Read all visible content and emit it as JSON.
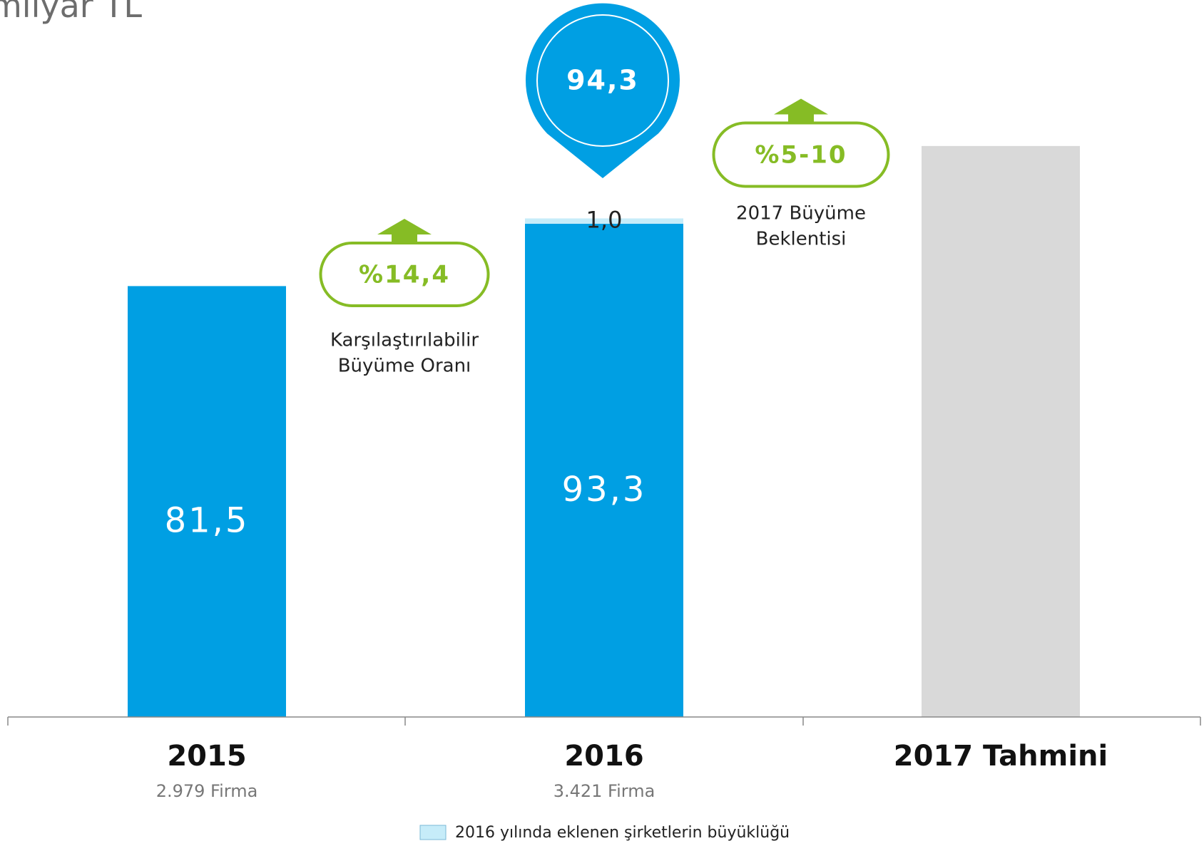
{
  "chart_data": {
    "type": "bar",
    "stacked": true,
    "title": "milyar TL",
    "categories": [
      "2015",
      "2016",
      "2017 Tahmini"
    ],
    "category_notes": [
      "2.979 Firma",
      "3.421 Firma",
      null
    ],
    "series": [
      {
        "color": "#009fe3",
        "values": [
          81.5,
          93.3,
          null
        ],
        "value_labels": [
          "81,5",
          "93,3",
          null
        ]
      },
      {
        "name": "2016 yılında eklenen şirketlerin büyüklüğü",
        "color": "#c6ecf9",
        "values": [
          null,
          1.0,
          null
        ],
        "value_labels": [
          null,
          "1,0",
          null
        ]
      },
      {
        "color": "#d9d9d9",
        "values": [
          null,
          null,
          108
        ]
      }
    ],
    "ylim": [
      0,
      110
    ],
    "total_pin": {
      "label": "94,3",
      "color": "#009fe3"
    },
    "growth_badges": [
      {
        "label": "%14,4",
        "caption": [
          "Karşılaştırılabilir",
          "Büyüme Oranı"
        ],
        "color": "#86bc25"
      },
      {
        "label": "%5-10",
        "caption": [
          "2017 Büyüme",
          "Beklentisi"
        ],
        "color": "#86bc25"
      }
    ]
  }
}
